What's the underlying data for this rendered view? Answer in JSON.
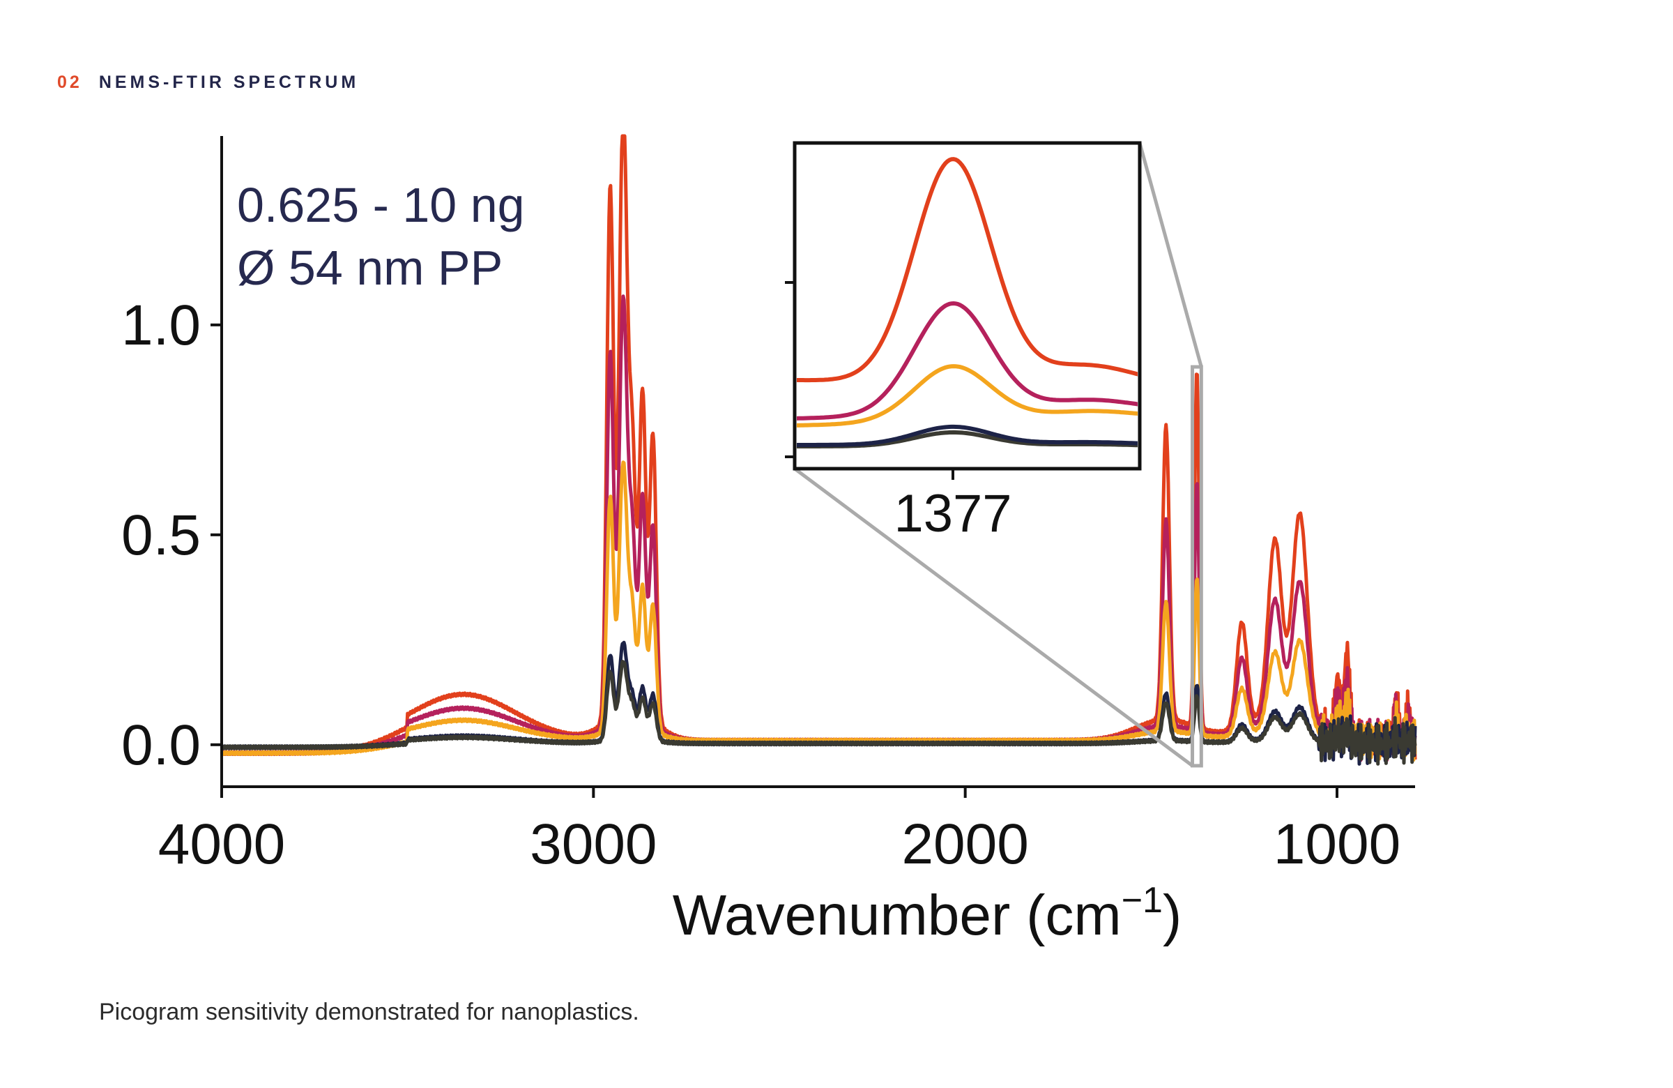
{
  "section": {
    "number": "02",
    "title": "NEMS-FTIR SPECTRUM"
  },
  "caption": "Picogram sensitivity demonstrated for nanoplastics.",
  "chart_data": {
    "type": "line",
    "xlabel": "Wavenumber (cm",
    "xlabel_sup": "−1",
    "xlabel_close": ")",
    "xlim": [
      4000,
      790
    ],
    "ylim": [
      -0.1,
      1.45
    ],
    "x_ticks": [
      4000,
      3000,
      2000,
      1000
    ],
    "x_tick_labels": [
      "4000",
      "3000",
      "2000",
      "1000"
    ],
    "y_ticks": [
      0.0,
      0.5,
      1.0
    ],
    "y_tick_labels": [
      "0.0",
      "0.5",
      "1.0"
    ],
    "annotation_line1": "0.625 - 10 ng",
    "annotation_line2": "Ø 54 nm PP",
    "inset": {
      "tick_label": "1377",
      "center_x": 1377
    },
    "colors": [
      "#e2401c",
      "#b5215c",
      "#f4a51e",
      "#1d2347",
      "#3a3a32"
    ],
    "series": [
      {
        "color": "#e2401c",
        "scale": 1.0
      },
      {
        "color": "#b5215c",
        "scale": 0.7
      },
      {
        "color": "#f4a51e",
        "scale": 0.44
      },
      {
        "color": "#1d2347",
        "scale": 0.16
      },
      {
        "color": "#3a3a32",
        "scale": 0.13
      }
    ],
    "peaks": [
      {
        "x": 2955,
        "height": 1.26
      },
      {
        "x": 2920,
        "height": 1.42
      },
      {
        "x": 2895,
        "height": 0.58
      },
      {
        "x": 2868,
        "height": 0.76
      },
      {
        "x": 2840,
        "height": 0.68
      },
      {
        "x": 1460,
        "height": 0.7
      },
      {
        "x": 1377,
        "height": 0.85
      },
      {
        "x": 1167,
        "height": 0.42
      },
      {
        "x": 1256,
        "height": 0.25
      },
      {
        "x": 1100,
        "height": 0.49
      },
      {
        "x": 998,
        "height": 0.14
      },
      {
        "x": 973,
        "height": 0.21
      },
      {
        "x": 841,
        "height": 0.1
      },
      {
        "x": 808,
        "height": 0.08
      }
    ]
  }
}
